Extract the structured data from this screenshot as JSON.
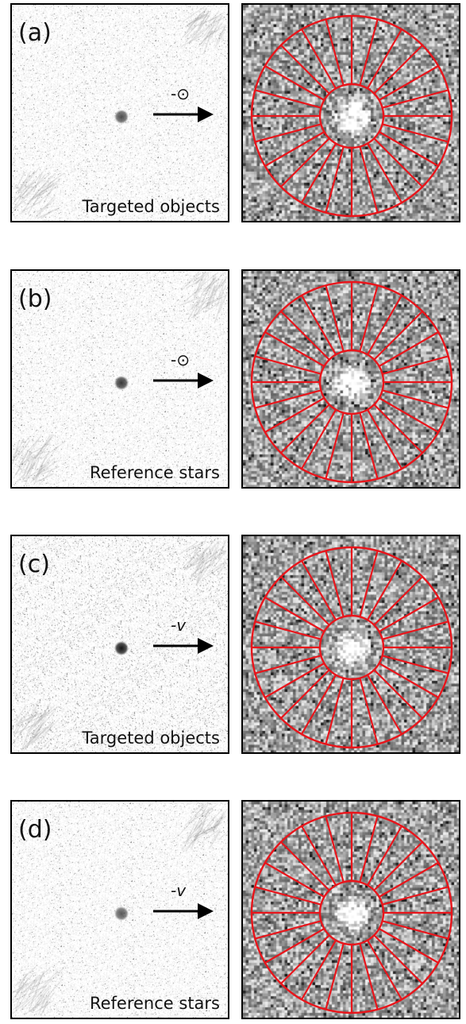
{
  "panels": [
    {
      "label": "(a)",
      "direction_symbol": "-⊙",
      "italic": false,
      "caption": "Targeted objects",
      "spoke_count": 24,
      "source_darkness": 0.75
    },
    {
      "label": "(b)",
      "direction_symbol": "-⊙",
      "italic": false,
      "caption": "Reference stars",
      "spoke_count": 24,
      "source_darkness": 0.85
    },
    {
      "label": "(c)",
      "direction_symbol": "-v",
      "italic": true,
      "caption": "Targeted objects",
      "spoke_count": 24,
      "source_darkness": 1.0
    },
    {
      "label": "(d)",
      "direction_symbol": "-v",
      "italic": true,
      "caption": "Reference stars",
      "spoke_count": 24,
      "source_darkness": 0.7
    }
  ],
  "colors": {
    "aperture": "#e8151b",
    "frame": "#000000",
    "arrow": "#000000"
  }
}
